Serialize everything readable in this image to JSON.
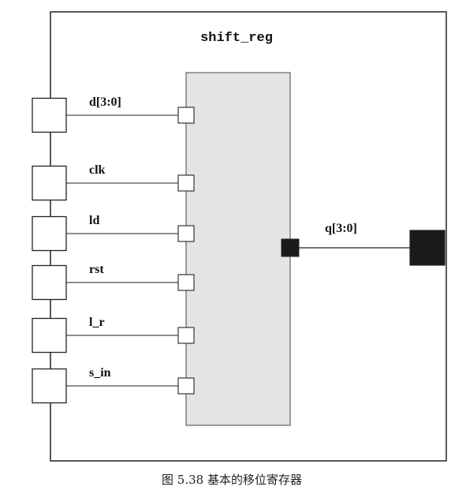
{
  "diagram": {
    "module_name": "shift_reg",
    "caption": "图 5.38   基本的移位寄存器",
    "colors": {
      "outline": "#222222",
      "inner_fill": "#e4e4e4",
      "port_fill": "#ffffff",
      "output_port_fill": "#1a1a1a"
    },
    "inputs": [
      {
        "label": "d[3:0]"
      },
      {
        "label": "clk"
      },
      {
        "label": "ld"
      },
      {
        "label": "rst"
      },
      {
        "label": "l_r"
      },
      {
        "label": "s_in"
      }
    ],
    "outputs": [
      {
        "label": "q[3:0]"
      }
    ]
  }
}
